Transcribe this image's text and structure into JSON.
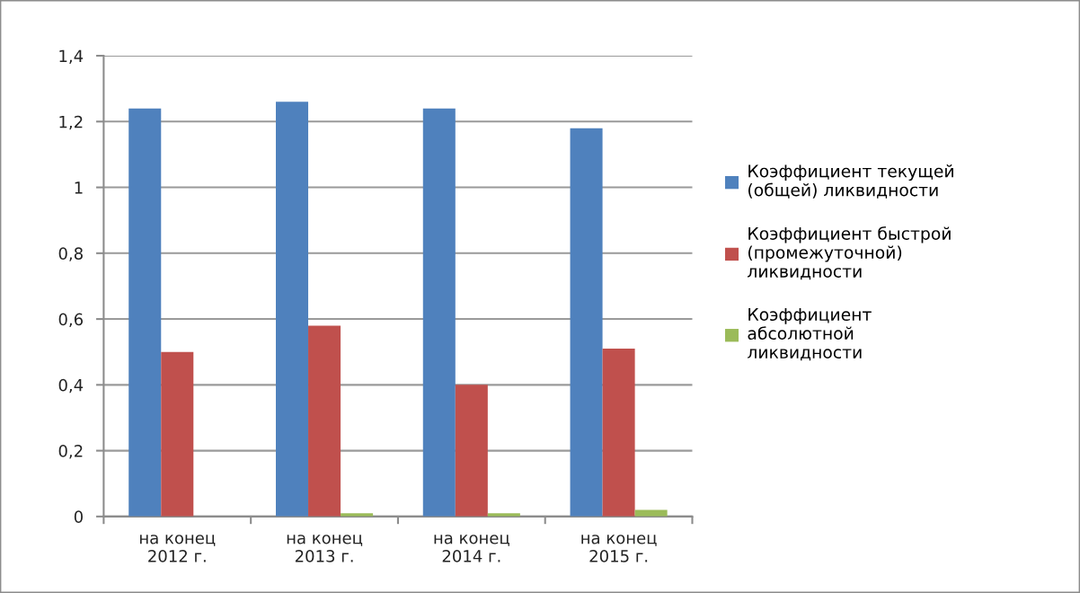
{
  "chart_data": {
    "type": "bar",
    "categories": [
      "на конец\n2012 г.",
      "на конец\n2013 г.",
      "на конец\n2014 г.",
      "на конец\n2015 г."
    ],
    "series": [
      {
        "name": "Коэффициент текущей\n(общей) ликвидности",
        "color": "#4f81bd",
        "values": [
          1.24,
          1.26,
          1.24,
          1.18
        ]
      },
      {
        "name": "Коэффициент быстрой\n(промежуточной)\nликвидности",
        "color": "#c0504d",
        "values": [
          0.5,
          0.58,
          0.4,
          0.51
        ]
      },
      {
        "name": "Коэффициент\nабсолютной\nликвидности",
        "color": "#9bbb59",
        "values": [
          0.0,
          0.01,
          0.01,
          0.02
        ]
      }
    ],
    "ylim": [
      0,
      1.4
    ],
    "yticks": [
      0,
      {
        "value": 0.2,
        "label": "0,2"
      },
      {
        "value": 0.4,
        "label": "0,4"
      },
      {
        "value": 0.6,
        "label": "0,6"
      },
      {
        "value": 0.8,
        "label": "0,8"
      },
      1,
      {
        "value": 1.2,
        "label": "1,2"
      },
      {
        "value": 1.4,
        "label": "1,4"
      }
    ],
    "grid": "y",
    "legend": "right"
  }
}
